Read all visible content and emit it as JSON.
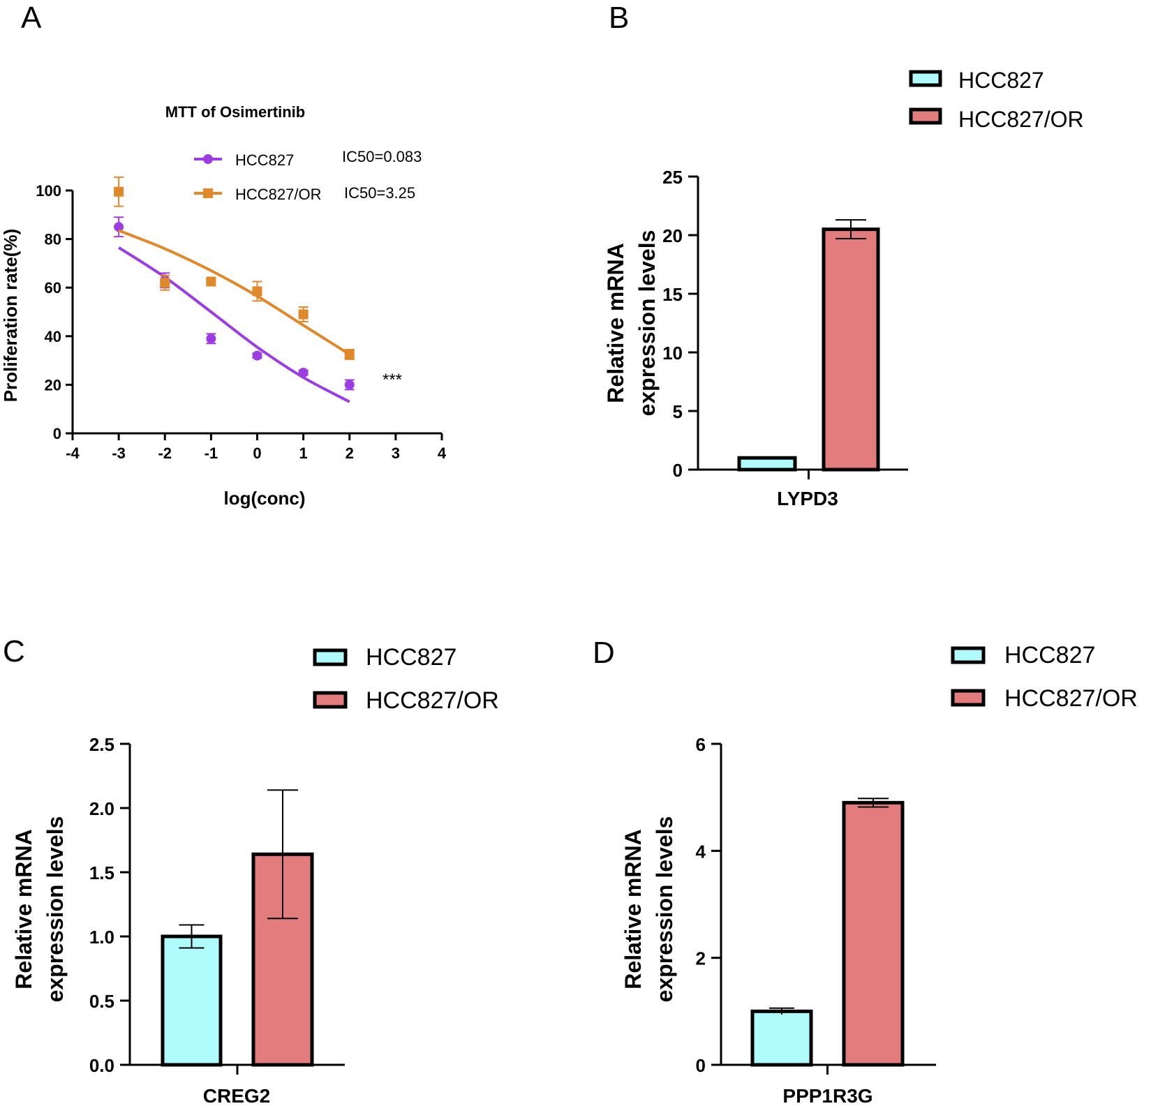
{
  "panels": [
    "A",
    "B",
    "C",
    "D"
  ],
  "chart_data": [
    {
      "type": "scatter",
      "title": "MTT of Osimertinib",
      "xlabel": "log(conc)",
      "ylabel": "Proliferation rate(%)",
      "xlim": [
        -4,
        4
      ],
      "ylim": [
        0,
        100
      ],
      "xticks": [
        "-4",
        "-3",
        "-2",
        "-1",
        "0",
        "1",
        "2",
        "3",
        "4"
      ],
      "yticks": [
        "0",
        "20",
        "40",
        "60",
        "80",
        "100"
      ],
      "series": [
        {
          "name": "HCC827",
          "ic50": "IC50=0.083",
          "color": "#9b3de0",
          "marker": "circle",
          "x": [
            -3,
            -2,
            -1,
            0,
            1,
            2
          ],
          "y": [
            85,
            63,
            39,
            32,
            25,
            20
          ],
          "err": [
            4,
            3,
            2,
            1,
            1,
            2
          ],
          "fit": [
            [
              -3,
              76.5
            ],
            [
              -2,
              64.3
            ],
            [
              -1,
              50
            ],
            [
              0,
              35.5
            ],
            [
              1,
              23
            ],
            [
              2,
              13
            ]
          ]
        },
        {
          "name": "HCC827/OR",
          "ic50": "IC50=3.25",
          "color": "#e0892b",
          "marker": "square",
          "x": [
            -3,
            -2,
            -1,
            0,
            1,
            2
          ],
          "y": [
            99.5,
            62,
            62.5,
            58.5,
            49,
            32.5
          ],
          "err": [
            6,
            3,
            1,
            4,
            3,
            2
          ],
          "fit": [
            [
              -3,
              83.5
            ],
            [
              -2,
              76
            ],
            [
              -1,
              67
            ],
            [
              0,
              56.5
            ],
            [
              1,
              44.5
            ],
            [
              2,
              32.5
            ]
          ]
        }
      ],
      "annotation": "***"
    },
    {
      "type": "bar",
      "categories": [
        "LYPD3"
      ],
      "ylabel": [
        "Relative mRNA",
        "expression levels"
      ],
      "ylim": [
        0,
        25
      ],
      "yticks": [
        "0",
        "5",
        "10",
        "15",
        "20",
        "25"
      ],
      "series": [
        {
          "name": "HCC827",
          "color": "#b0fbfb",
          "values": [
            1.0
          ],
          "err": [
            0.05
          ]
        },
        {
          "name": "HCC827/OR",
          "color": "#e37c7c",
          "values": [
            20.5
          ],
          "err": [
            0.8
          ]
        }
      ]
    },
    {
      "type": "bar",
      "categories": [
        "CREG2"
      ],
      "ylabel": [
        "Relative mRNA",
        "expression levels"
      ],
      "ylim": [
        0,
        2.5
      ],
      "yticks": [
        "0.0",
        "0.5",
        "1.0",
        "1.5",
        "2.0",
        "2.5"
      ],
      "series": [
        {
          "name": "HCC827",
          "color": "#b0fbfb",
          "values": [
            1.0
          ],
          "err": [
            0.09
          ]
        },
        {
          "name": "HCC827/OR",
          "color": "#e37c7c",
          "values": [
            1.64
          ],
          "err": [
            0.5
          ]
        }
      ]
    },
    {
      "type": "bar",
      "categories": [
        "PPP1R3G"
      ],
      "ylabel": [
        "Relative mRNA",
        "expression levels"
      ],
      "ylim": [
        0,
        6
      ],
      "yticks": [
        "0",
        "2",
        "4",
        "6"
      ],
      "series": [
        {
          "name": "HCC827",
          "color": "#b0fbfb",
          "values": [
            1.0
          ],
          "err": [
            0.06
          ]
        },
        {
          "name": "HCC827/OR",
          "color": "#e37c7c",
          "values": [
            4.9
          ],
          "err": [
            0.08
          ]
        }
      ]
    }
  ]
}
